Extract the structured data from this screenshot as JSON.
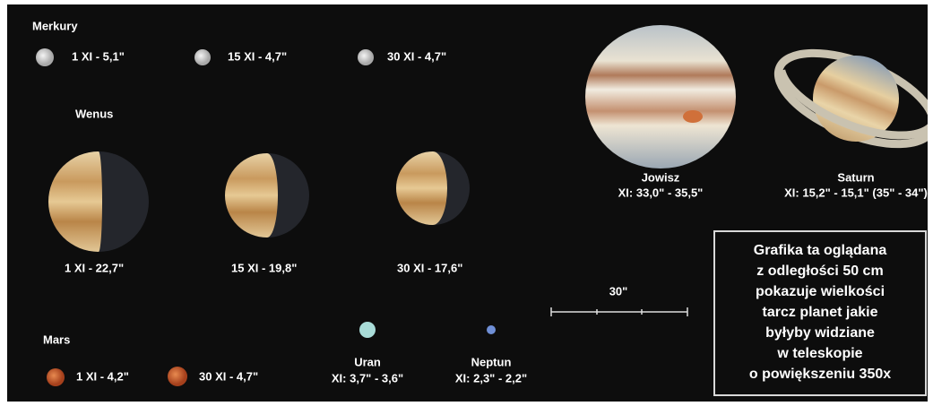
{
  "mercury": {
    "label": "Merkury",
    "phases": [
      "1 XI - 5,1\"",
      "15 XI - 4,7\"",
      "30 XI - 4,7\""
    ]
  },
  "venus": {
    "label": "Wenus",
    "phases": [
      "1 XI - 22,7\"",
      "15 XI - 19,8\"",
      "30 XI - 17,6\""
    ]
  },
  "mars": {
    "label": "Mars",
    "phases": [
      "1 XI - 4,2\"",
      "30 XI - 4,7\""
    ]
  },
  "uranus": {
    "label": "Uran",
    "size": "XI: 3,7\" - 3,6\""
  },
  "neptune": {
    "label": "Neptun",
    "size": "XI: 2,3\" - 2,2\""
  },
  "jupiter": {
    "label": "Jowisz",
    "size": "XI: 33,0\" - 35,5\""
  },
  "saturn": {
    "label": "Saturn",
    "size": "XI: 15,2\" - 15,1\" (35\" - 34\")"
  },
  "scale_bar": {
    "label": "30\""
  },
  "note": {
    "lines": [
      "Grafika ta oglądana",
      "z odległości 50 cm",
      "pokazuje wielkości",
      "tarcz planet jakie",
      "byłyby widziane",
      "w teleskopie",
      "o powiększeniu 350x"
    ]
  }
}
